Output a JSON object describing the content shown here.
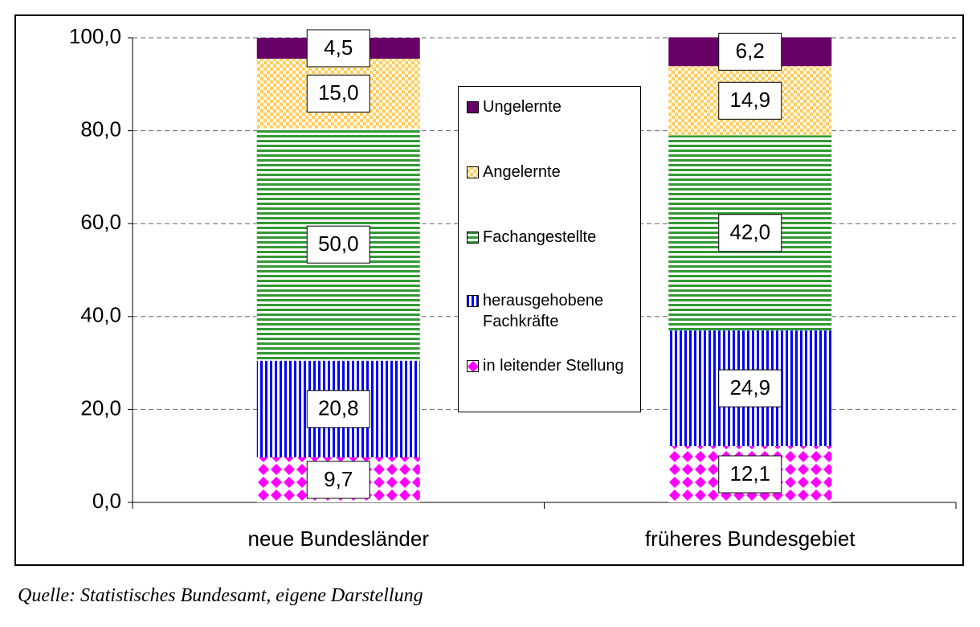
{
  "chart_data": {
    "type": "stacked_bar",
    "categories": [
      "neue Bundesländer",
      "früheres Bundesgebiet"
    ],
    "series": [
      {
        "name": "in leitender Stellung",
        "color": "#ff00ff",
        "pattern": "diamonds",
        "values": [
          9.7,
          12.1
        ],
        "value_labels": [
          "9,7",
          "12,1"
        ]
      },
      {
        "name": "herausgehobene Fachkräfte",
        "color": "#0000ff",
        "pattern": "vstripes",
        "values": [
          20.8,
          24.9
        ],
        "value_labels": [
          "20,8",
          "24,9"
        ]
      },
      {
        "name": "Fachangestellte",
        "color": "#339933",
        "pattern": "hstripes",
        "values": [
          50.0,
          42.0
        ],
        "value_labels": [
          "50,0",
          "42,0"
        ]
      },
      {
        "name": "Angelernte",
        "color": "#ffcc66",
        "pattern": "checker",
        "values": [
          15.0,
          14.9
        ],
        "value_labels": [
          "15,0",
          "14,9"
        ]
      },
      {
        "name": "Ungelernte",
        "color": "#660066",
        "pattern": "solid",
        "values": [
          4.5,
          6.2
        ],
        "value_labels": [
          "4,5",
          "6,2"
        ]
      }
    ],
    "ylim": [
      0,
      100
    ],
    "yticks": [
      {
        "value": 0,
        "label": "0,0"
      },
      {
        "value": 20,
        "label": "20,0"
      },
      {
        "value": 40,
        "label": "40,0"
      },
      {
        "value": 60,
        "label": "60,0"
      },
      {
        "value": 80,
        "label": "80,0"
      },
      {
        "value": 100,
        "label": "100,0"
      }
    ],
    "grid": true
  },
  "source": "Quelle: Statistisches Bundesamt, eigene Darstellung"
}
